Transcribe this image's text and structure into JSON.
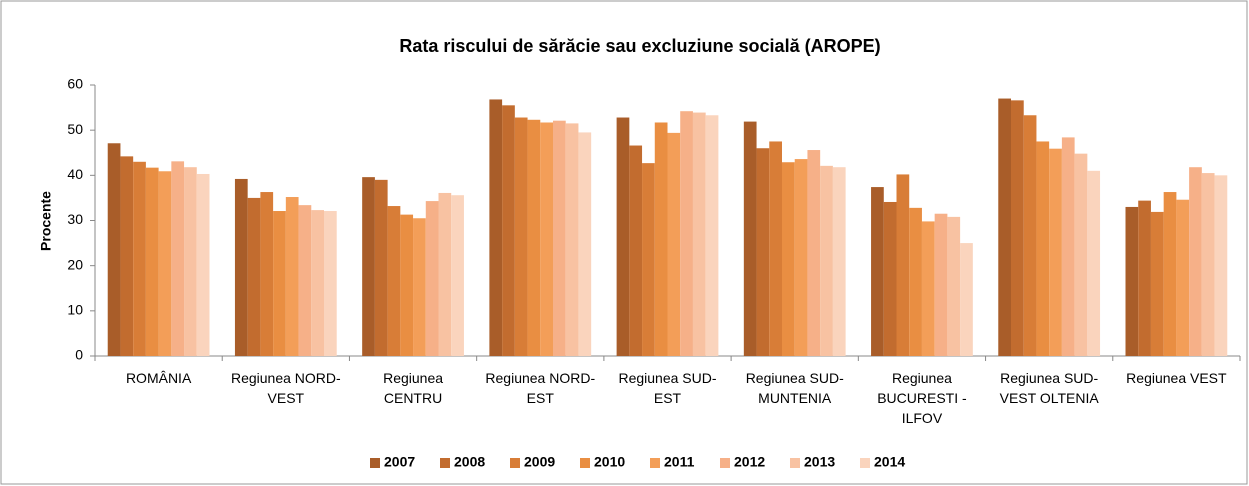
{
  "chart_data": {
    "type": "bar",
    "title": "Rata riscului de sărăcie sau excluziune socială (AROPE)",
    "y_label": "Procente",
    "categories": [
      "ROMÂNIA",
      "Regiunea NORD-VEST",
      "Regiunea CENTRU",
      "Regiunea NORD-EST",
      "Regiunea SUD-EST",
      "Regiunea SUD-MUNTENIA",
      "Regiunea BUCURESTI - ILFOV",
      "Regiunea SUD-VEST OLTENIA",
      "Regiunea VEST"
    ],
    "series": [
      {
        "name": "2007",
        "color": "#a95d29",
        "values": [
          47.1,
          39.2,
          39.6,
          56.8,
          52.8,
          51.9,
          37.4,
          57.0,
          33.0
        ]
      },
      {
        "name": "2008",
        "color": "#c26c2f",
        "values": [
          44.2,
          35.0,
          39.0,
          55.5,
          46.6,
          46.0,
          34.1,
          56.6,
          34.4
        ]
      },
      {
        "name": "2009",
        "color": "#d87d37",
        "values": [
          43.0,
          36.3,
          33.2,
          52.8,
          42.7,
          47.5,
          40.2,
          53.3,
          31.9
        ]
      },
      {
        "name": "2010",
        "color": "#e98e42",
        "values": [
          41.7,
          32.1,
          31.3,
          52.3,
          51.7,
          42.9,
          32.8,
          47.5,
          36.3
        ]
      },
      {
        "name": "2011",
        "color": "#f39e58",
        "values": [
          40.9,
          35.2,
          30.5,
          51.7,
          49.4,
          43.6,
          29.8,
          45.9,
          34.6
        ]
      },
      {
        "name": "2012",
        "color": "#f6b088",
        "values": [
          43.1,
          33.4,
          34.3,
          52.1,
          54.2,
          45.6,
          31.5,
          48.4,
          41.8
        ]
      },
      {
        "name": "2013",
        "color": "#f8c2a2",
        "values": [
          41.8,
          32.3,
          36.1,
          51.5,
          53.9,
          42.1,
          30.8,
          44.8,
          40.5
        ]
      },
      {
        "name": "2014",
        "color": "#fad4bd",
        "values": [
          40.3,
          32.1,
          35.6,
          49.5,
          53.3,
          41.8,
          25.0,
          41.0,
          40.0
        ]
      }
    ],
    "ylim": [
      0,
      60
    ],
    "yticks": [
      0,
      10,
      20,
      30,
      40,
      50,
      60
    ],
    "grid": false,
    "legend": "bottom"
  }
}
